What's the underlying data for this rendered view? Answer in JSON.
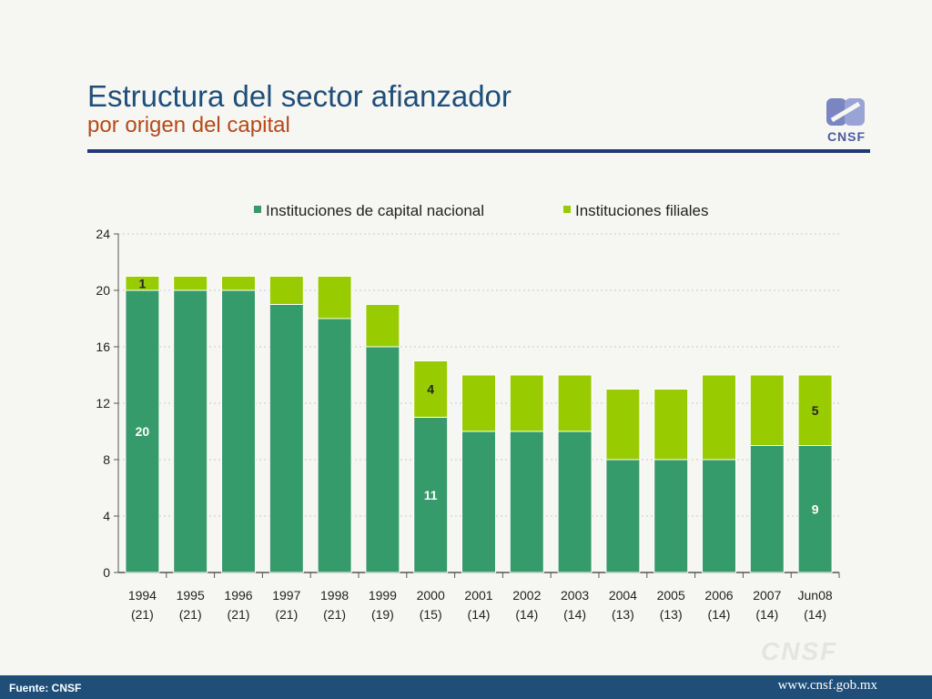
{
  "header": {
    "title": "Estructura del sector afianzador",
    "subtitle": "por origen del capital",
    "logo_text": "CNSF"
  },
  "footer": {
    "source": "Fuente: CNSF",
    "url": "www.cnsf.gob.mx",
    "watermark": "CNSF"
  },
  "colors": {
    "nacional": "#359b6a",
    "filiales": "#99cc00",
    "title": "#1f4e79",
    "subtitle": "#b34a1a",
    "footer": "#1f4e79"
  },
  "chart_data": {
    "type": "bar",
    "stacked": true,
    "categories": [
      "1994",
      "1995",
      "1996",
      "1997",
      "1998",
      "1999",
      "2000",
      "2001",
      "2002",
      "2003",
      "2004",
      "2005",
      "2006",
      "2007",
      "Jun08"
    ],
    "category_totals": [
      "(21)",
      "(21)",
      "(21)",
      "(21)",
      "(21)",
      "(19)",
      "(15)",
      "(14)",
      "(14)",
      "(14)",
      "(13)",
      "(13)",
      "(14)",
      "(14)",
      "(14)"
    ],
    "series": [
      {
        "name": "Instituciones de capital nacional",
        "values": [
          20,
          20,
          20,
          19,
          18,
          16,
          11,
          10,
          10,
          10,
          8,
          8,
          8,
          9,
          9
        ]
      },
      {
        "name": "Instituciones filiales",
        "values": [
          1,
          1,
          1,
          2,
          3,
          3,
          4,
          4,
          4,
          4,
          5,
          5,
          6,
          5,
          5
        ]
      }
    ],
    "data_labels": [
      {
        "series": 1,
        "index": 0,
        "text": "1"
      },
      {
        "series": 0,
        "index": 0,
        "text": "20"
      },
      {
        "series": 1,
        "index": 6,
        "text": "4"
      },
      {
        "series": 0,
        "index": 6,
        "text": "11"
      },
      {
        "series": 1,
        "index": 14,
        "text": "5"
      },
      {
        "series": 0,
        "index": 14,
        "text": "9"
      }
    ],
    "ylim": [
      0,
      24
    ],
    "yticks": [
      0,
      4,
      8,
      12,
      16,
      20,
      24
    ],
    "ytick_labels": [
      "0",
      "4",
      "8",
      "12",
      "16",
      "20",
      "24"
    ],
    "grid": true,
    "legend_position": "top",
    "xlabel": "",
    "ylabel": ""
  }
}
